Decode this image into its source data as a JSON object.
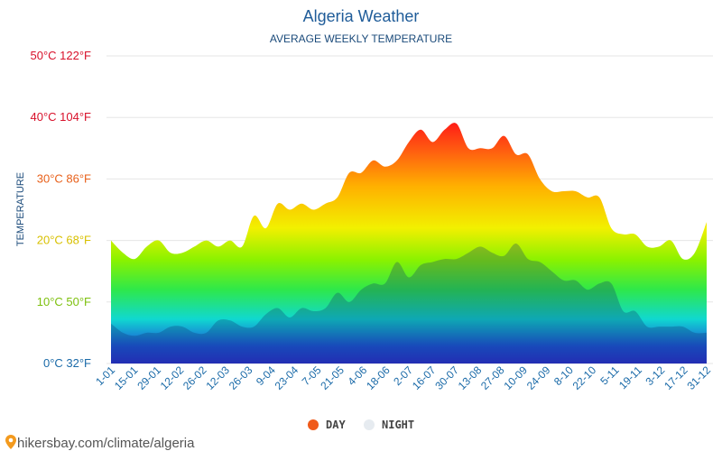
{
  "footer": {
    "url": "hikersbay.com/climate/algeria"
  },
  "chart_data": {
    "type": "area",
    "title": "Algeria Weather",
    "subtitle": "AVERAGE WEEKLY TEMPERATURE",
    "ylabel": "TEMPERATURE",
    "ylim": [
      0,
      50
    ],
    "y_ticks": [
      {
        "value": 0,
        "label": "0°C 32°F",
        "color": "#1a6aa8"
      },
      {
        "value": 10,
        "label": "10°C 50°F",
        "color": "#7dc00e"
      },
      {
        "value": 20,
        "label": "20°C 68°F",
        "color": "#d8c000"
      },
      {
        "value": 30,
        "label": "30°C 86°F",
        "color": "#e8601a"
      },
      {
        "value": 40,
        "label": "40°C 104°F",
        "color": "#d8102a"
      },
      {
        "value": 50,
        "label": "50°C 122°F",
        "color": "#d8102a"
      }
    ],
    "x_tick_labels": [
      "1-01",
      "15-01",
      "29-01",
      "12-02",
      "26-02",
      "12-03",
      "26-03",
      "9-04",
      "23-04",
      "7-05",
      "21-05",
      "4-06",
      "18-06",
      "2-07",
      "16-07",
      "30-07",
      "13-08",
      "27-08",
      "10-09",
      "24-09",
      "8-10",
      "22-10",
      "5-11",
      "19-11",
      "3-12",
      "17-12",
      "31-12"
    ],
    "grid": true,
    "legend_position": "bottom",
    "series": [
      {
        "name": "DAY",
        "color": "#f05a1a",
        "values": [
          20,
          18,
          17,
          19,
          20,
          18,
          18,
          19,
          20,
          19,
          20,
          19,
          24,
          22,
          26,
          25,
          26,
          25,
          26,
          27,
          31,
          31,
          33,
          32,
          33,
          36,
          38,
          36,
          38,
          39,
          35,
          35,
          35,
          37,
          34,
          34,
          30,
          28,
          28,
          28,
          27,
          27,
          22,
          21,
          21,
          19,
          19,
          20,
          17,
          18,
          23
        ]
      },
      {
        "name": "NIGHT",
        "color": "#e6ebf0",
        "values": [
          6.5,
          5,
          4.5,
          5,
          5,
          6,
          6,
          5,
          5,
          7,
          7,
          6,
          6,
          8,
          9,
          7.5,
          9,
          8.5,
          9,
          11.5,
          10,
          12,
          13,
          13,
          16.5,
          14,
          16,
          16.5,
          17,
          17,
          18,
          19,
          18,
          17.5,
          19.5,
          17,
          16.5,
          15,
          13.5,
          13.5,
          12,
          13,
          13,
          8.5,
          8.5,
          6,
          6,
          6,
          6,
          5,
          5
        ]
      }
    ]
  }
}
